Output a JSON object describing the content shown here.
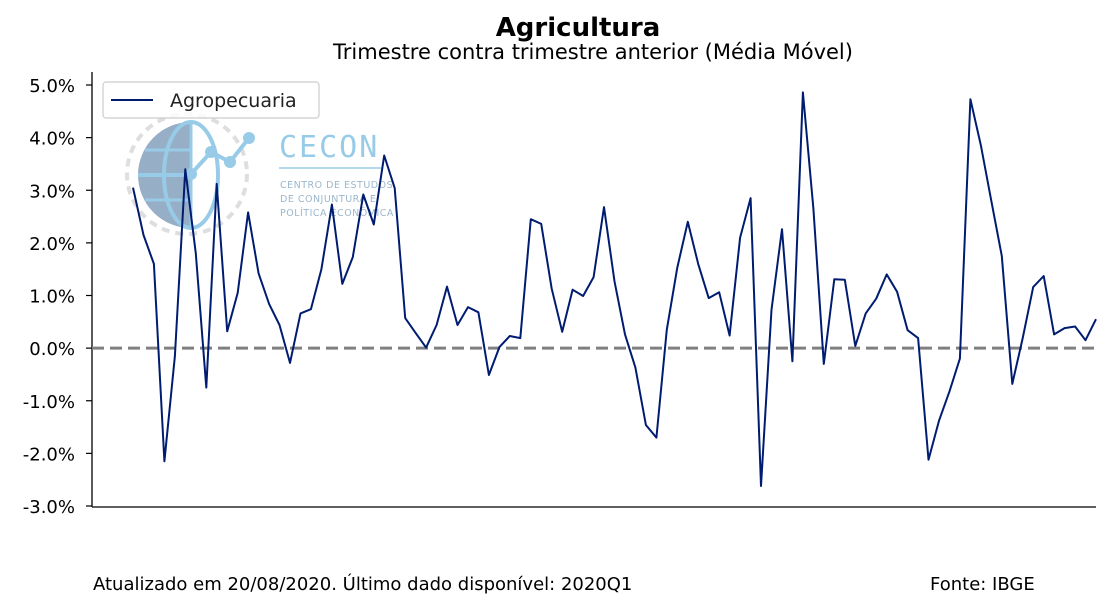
{
  "chart_data": {
    "type": "line",
    "title": "Agricultura",
    "subtitle": "Trimestre contra trimestre anterior (Média Móvel)",
    "xlabel": "",
    "ylabel": "",
    "ylim": [
      -3.0,
      5.0
    ],
    "yticks": [
      "5.0%",
      "4.0%",
      "3.0%",
      "2.0%",
      "1.0%",
      "0.0%",
      "-1.0%",
      "-2.0%",
      "-3.0%"
    ],
    "ytick_values": [
      5,
      4,
      3,
      2,
      1,
      0,
      -1,
      -2,
      -3
    ],
    "reference_line": 0.0,
    "legend_position": "top-left",
    "grid": false,
    "series": [
      {
        "name": "Agropecuaria",
        "color": "#001c71",
        "values": [
          3.05,
          2.15,
          1.6,
          -2.15,
          -0.15,
          3.4,
          1.8,
          -0.75,
          3.12,
          0.32,
          1.05,
          2.58,
          1.42,
          0.84,
          0.44,
          -0.28,
          0.66,
          0.74,
          1.5,
          2.73,
          1.22,
          1.73,
          2.92,
          2.35,
          3.66,
          3.04,
          0.57,
          0.29,
          0.01,
          0.44,
          1.17,
          0.44,
          0.78,
          0.68,
          -0.51,
          0.02,
          0.23,
          0.19,
          2.45,
          2.36,
          1.13,
          0.31,
          1.11,
          0.99,
          1.35,
          2.68,
          1.27,
          0.26,
          -0.37,
          -1.46,
          -1.7,
          0.35,
          1.53,
          2.4,
          1.6,
          0.95,
          1.06,
          0.24,
          2.1,
          2.85,
          -2.62,
          0.73,
          2.26,
          -0.25,
          4.86,
          2.65,
          -0.3,
          1.31,
          1.3,
          0.04,
          0.66,
          0.94,
          1.4,
          1.07,
          0.34,
          0.19,
          -2.12,
          -1.38,
          -0.82,
          -0.2,
          4.73,
          3.85,
          2.8,
          1.75,
          -0.68,
          0.19,
          1.16,
          1.37,
          0.26,
          0.38,
          0.41,
          0.15,
          0.55
        ]
      }
    ]
  },
  "logo": {
    "name": "CECON",
    "sub1": "CENTRO DE ESTUDOS",
    "sub2": "DE CONJUNTURA E",
    "sub3": "POLÍTICA ECONÔMICA"
  },
  "footer": {
    "updated": "Atualizado em 20/08/2020. Último dado disponível: 2020Q1",
    "source": "Fonte: IBGE"
  }
}
